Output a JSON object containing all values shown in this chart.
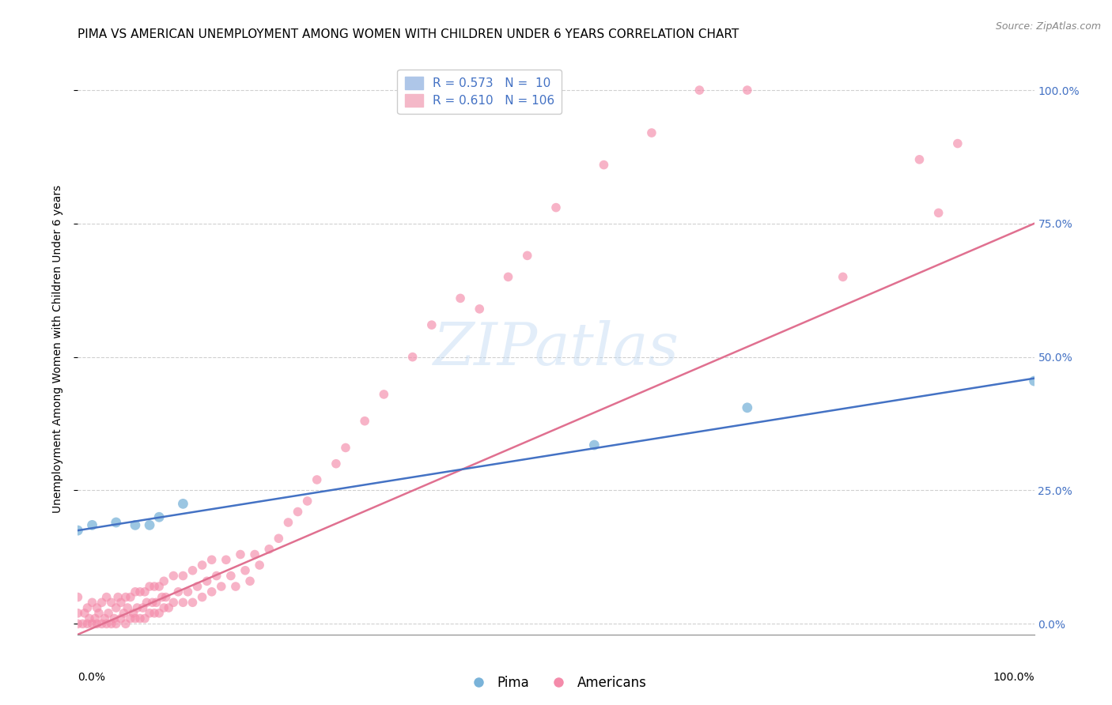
{
  "title": "PIMA VS AMERICAN UNEMPLOYMENT AMONG WOMEN WITH CHILDREN UNDER 6 YEARS CORRELATION CHART",
  "source": "Source: ZipAtlas.com",
  "ylabel": "Unemployment Among Women with Children Under 6 years",
  "ytick_labels": [
    "0.0%",
    "25.0%",
    "50.0%",
    "75.0%",
    "100.0%"
  ],
  "ytick_values": [
    0.0,
    0.25,
    0.5,
    0.75,
    1.0
  ],
  "xlim": [
    0.0,
    1.0
  ],
  "ylim": [
    -0.02,
    1.05
  ],
  "pima_color": "#7ab3d9",
  "american_color": "#f48baa",
  "pima_line_color": "#4472c4",
  "american_line_color": "#e07090",
  "background_color": "#ffffff",
  "grid_color": "#d0d0d0",
  "pima_x": [
    0.0,
    0.015,
    0.04,
    0.06,
    0.075,
    0.085,
    0.11,
    0.54,
    0.7,
    1.0
  ],
  "pima_y": [
    0.175,
    0.185,
    0.19,
    0.185,
    0.185,
    0.2,
    0.225,
    0.335,
    0.405,
    0.455
  ],
  "american_x": [
    0.0,
    0.0,
    0.0,
    0.005,
    0.007,
    0.01,
    0.01,
    0.012,
    0.015,
    0.015,
    0.018,
    0.02,
    0.02,
    0.022,
    0.025,
    0.025,
    0.028,
    0.03,
    0.03,
    0.032,
    0.035,
    0.035,
    0.038,
    0.04,
    0.04,
    0.042,
    0.045,
    0.045,
    0.048,
    0.05,
    0.05,
    0.052,
    0.055,
    0.055,
    0.058,
    0.06,
    0.06,
    0.062,
    0.065,
    0.065,
    0.068,
    0.07,
    0.07,
    0.072,
    0.075,
    0.075,
    0.078,
    0.08,
    0.08,
    0.082,
    0.085,
    0.085,
    0.088,
    0.09,
    0.09,
    0.092,
    0.095,
    0.1,
    0.1,
    0.105,
    0.11,
    0.11,
    0.115,
    0.12,
    0.12,
    0.125,
    0.13,
    0.13,
    0.135,
    0.14,
    0.14,
    0.145,
    0.15,
    0.155,
    0.16,
    0.165,
    0.17,
    0.175,
    0.18,
    0.185,
    0.19,
    0.2,
    0.21,
    0.22,
    0.23,
    0.24,
    0.25,
    0.27,
    0.28,
    0.3,
    0.32,
    0.35,
    0.37,
    0.4,
    0.42,
    0.45,
    0.47,
    0.5,
    0.55,
    0.6,
    0.65,
    0.7,
    0.8,
    0.88,
    0.9,
    0.92
  ],
  "american_y": [
    0.0,
    0.02,
    0.05,
    0.0,
    0.02,
    0.0,
    0.03,
    0.01,
    0.0,
    0.04,
    0.01,
    0.0,
    0.03,
    0.02,
    0.0,
    0.04,
    0.01,
    0.0,
    0.05,
    0.02,
    0.0,
    0.04,
    0.01,
    0.0,
    0.03,
    0.05,
    0.01,
    0.04,
    0.02,
    0.0,
    0.05,
    0.03,
    0.01,
    0.05,
    0.02,
    0.01,
    0.06,
    0.03,
    0.01,
    0.06,
    0.03,
    0.01,
    0.06,
    0.04,
    0.02,
    0.07,
    0.04,
    0.02,
    0.07,
    0.04,
    0.02,
    0.07,
    0.05,
    0.03,
    0.08,
    0.05,
    0.03,
    0.04,
    0.09,
    0.06,
    0.04,
    0.09,
    0.06,
    0.04,
    0.1,
    0.07,
    0.05,
    0.11,
    0.08,
    0.06,
    0.12,
    0.09,
    0.07,
    0.12,
    0.09,
    0.07,
    0.13,
    0.1,
    0.08,
    0.13,
    0.11,
    0.14,
    0.16,
    0.19,
    0.21,
    0.23,
    0.27,
    0.3,
    0.33,
    0.38,
    0.43,
    0.5,
    0.56,
    0.61,
    0.59,
    0.65,
    0.69,
    0.78,
    0.86,
    0.92,
    1.0,
    1.0,
    0.65,
    0.87,
    0.77,
    0.9
  ],
  "title_fontsize": 11,
  "axis_label_fontsize": 10,
  "tick_fontsize": 10,
  "legend_fontsize": 11,
  "source_fontsize": 9,
  "watermark": "ZIPatlas",
  "pima_intercept": 0.175,
  "pima_slope": 0.285,
  "american_intercept": -0.02,
  "american_slope": 0.77
}
